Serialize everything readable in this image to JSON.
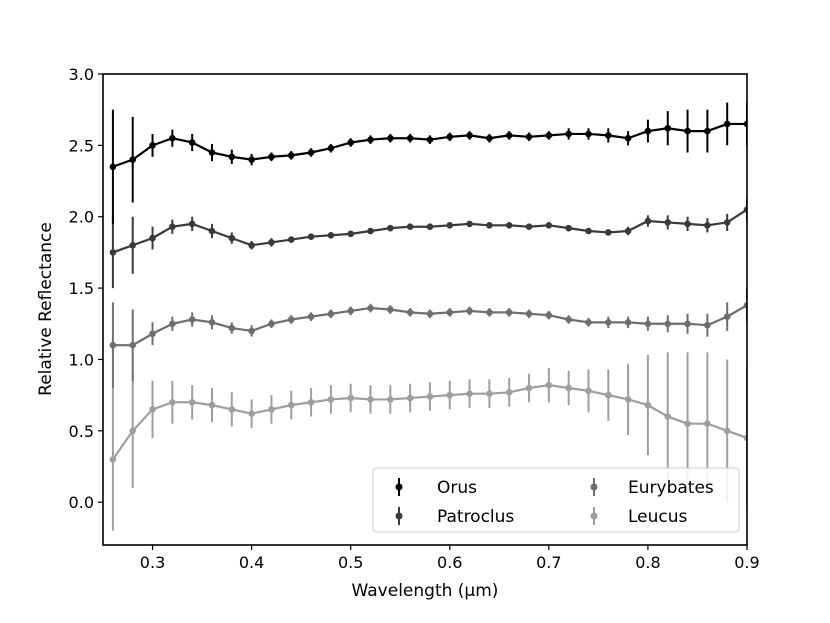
{
  "chart_data": {
    "type": "scatter",
    "title": "",
    "xlabel": "Wavelength (μm)",
    "ylabel": "Relative Reflectance",
    "xlim": [
      0.25,
      0.9
    ],
    "ylim": [
      -0.3,
      3.0
    ],
    "xticks": [
      0.3,
      0.4,
      0.5,
      0.6,
      0.7,
      0.8,
      0.9
    ],
    "xtick_labels": [
      "0.3",
      "0.4",
      "0.5",
      "0.6",
      "0.7",
      "0.8",
      "0.9"
    ],
    "yticks": [
      0.0,
      0.5,
      1.0,
      1.5,
      2.0,
      2.5,
      3.0
    ],
    "ytick_labels": [
      "0.0",
      "0.5",
      "1.0",
      "1.5",
      "2.0",
      "2.5",
      "3.0"
    ],
    "grid": false,
    "legend_position": "bottom-right",
    "series": [
      {
        "name": "Orus",
        "color": "#000000",
        "x": [
          0.26,
          0.28,
          0.3,
          0.32,
          0.34,
          0.36,
          0.38,
          0.4,
          0.42,
          0.44,
          0.46,
          0.48,
          0.5,
          0.52,
          0.54,
          0.56,
          0.58,
          0.6,
          0.62,
          0.64,
          0.66,
          0.68,
          0.7,
          0.72,
          0.74,
          0.76,
          0.78,
          0.8,
          0.82,
          0.84,
          0.86,
          0.88,
          0.9
        ],
        "y": [
          2.35,
          2.4,
          2.5,
          2.55,
          2.52,
          2.45,
          2.42,
          2.4,
          2.42,
          2.43,
          2.45,
          2.48,
          2.52,
          2.54,
          2.55,
          2.55,
          2.54,
          2.56,
          2.57,
          2.55,
          2.57,
          2.56,
          2.57,
          2.58,
          2.58,
          2.57,
          2.55,
          2.6,
          2.62,
          2.6,
          2.6,
          2.65,
          2.65
        ],
        "err": [
          0.4,
          0.3,
          0.08,
          0.06,
          0.06,
          0.06,
          0.05,
          0.04,
          0.03,
          0.03,
          0.03,
          0.03,
          0.03,
          0.03,
          0.03,
          0.03,
          0.03,
          0.03,
          0.03,
          0.03,
          0.03,
          0.03,
          0.03,
          0.04,
          0.04,
          0.05,
          0.05,
          0.08,
          0.12,
          0.15,
          0.15,
          0.15,
          0.15
        ]
      },
      {
        "name": "Patroclus",
        "color": "#3a3a3a",
        "x": [
          0.26,
          0.28,
          0.3,
          0.32,
          0.34,
          0.36,
          0.38,
          0.4,
          0.42,
          0.44,
          0.46,
          0.48,
          0.5,
          0.52,
          0.54,
          0.56,
          0.58,
          0.6,
          0.62,
          0.64,
          0.66,
          0.68,
          0.7,
          0.72,
          0.74,
          0.76,
          0.78,
          0.8,
          0.82,
          0.84,
          0.86,
          0.88,
          0.9
        ],
        "y": [
          1.75,
          1.8,
          1.85,
          1.93,
          1.95,
          1.9,
          1.85,
          1.8,
          1.82,
          1.84,
          1.86,
          1.87,
          1.88,
          1.9,
          1.92,
          1.93,
          1.93,
          1.94,
          1.95,
          1.94,
          1.94,
          1.93,
          1.94,
          1.92,
          1.9,
          1.89,
          1.9,
          1.97,
          1.96,
          1.95,
          1.94,
          1.96,
          2.05
        ],
        "err": [
          0.25,
          0.2,
          0.08,
          0.05,
          0.05,
          0.05,
          0.04,
          0.03,
          0.03,
          0.02,
          0.02,
          0.02,
          0.02,
          0.02,
          0.02,
          0.02,
          0.02,
          0.02,
          0.02,
          0.02,
          0.02,
          0.02,
          0.02,
          0.02,
          0.02,
          0.02,
          0.03,
          0.04,
          0.05,
          0.05,
          0.05,
          0.06,
          0.08
        ]
      },
      {
        "name": "Eurybates",
        "color": "#6e6e6e",
        "x": [
          0.26,
          0.28,
          0.3,
          0.32,
          0.34,
          0.36,
          0.38,
          0.4,
          0.42,
          0.44,
          0.46,
          0.48,
          0.5,
          0.52,
          0.54,
          0.56,
          0.58,
          0.6,
          0.62,
          0.64,
          0.66,
          0.68,
          0.7,
          0.72,
          0.74,
          0.76,
          0.78,
          0.8,
          0.82,
          0.84,
          0.86,
          0.88,
          0.9
        ],
        "y": [
          1.1,
          1.1,
          1.18,
          1.25,
          1.28,
          1.26,
          1.22,
          1.2,
          1.25,
          1.28,
          1.3,
          1.32,
          1.34,
          1.36,
          1.35,
          1.33,
          1.32,
          1.33,
          1.34,
          1.33,
          1.33,
          1.32,
          1.31,
          1.28,
          1.26,
          1.26,
          1.26,
          1.25,
          1.25,
          1.25,
          1.24,
          1.3,
          1.38
        ],
        "err": [
          0.3,
          0.25,
          0.08,
          0.05,
          0.05,
          0.05,
          0.04,
          0.04,
          0.03,
          0.03,
          0.03,
          0.03,
          0.03,
          0.03,
          0.03,
          0.03,
          0.03,
          0.03,
          0.03,
          0.03,
          0.03,
          0.03,
          0.03,
          0.03,
          0.03,
          0.04,
          0.04,
          0.05,
          0.06,
          0.07,
          0.08,
          0.1,
          0.12
        ]
      },
      {
        "name": "Leucus",
        "color": "#9e9e9e",
        "x": [
          0.26,
          0.28,
          0.3,
          0.32,
          0.34,
          0.36,
          0.38,
          0.4,
          0.42,
          0.44,
          0.46,
          0.48,
          0.5,
          0.52,
          0.54,
          0.56,
          0.58,
          0.6,
          0.62,
          0.64,
          0.66,
          0.68,
          0.7,
          0.72,
          0.74,
          0.76,
          0.78,
          0.8,
          0.82,
          0.84,
          0.86,
          0.88,
          0.9
        ],
        "y": [
          0.3,
          0.5,
          0.65,
          0.7,
          0.7,
          0.68,
          0.65,
          0.62,
          0.65,
          0.68,
          0.7,
          0.72,
          0.73,
          0.72,
          0.72,
          0.73,
          0.74,
          0.75,
          0.76,
          0.76,
          0.77,
          0.8,
          0.82,
          0.8,
          0.78,
          0.75,
          0.72,
          0.68,
          0.6,
          0.55,
          0.55,
          0.5,
          0.45
        ],
        "err": [
          0.5,
          0.4,
          0.2,
          0.15,
          0.12,
          0.12,
          0.12,
          0.1,
          0.1,
          0.1,
          0.1,
          0.1,
          0.1,
          0.1,
          0.1,
          0.1,
          0.1,
          0.1,
          0.1,
          0.1,
          0.1,
          0.1,
          0.12,
          0.12,
          0.15,
          0.18,
          0.25,
          0.35,
          0.45,
          0.5,
          0.5,
          0.5,
          0.5
        ]
      }
    ]
  }
}
